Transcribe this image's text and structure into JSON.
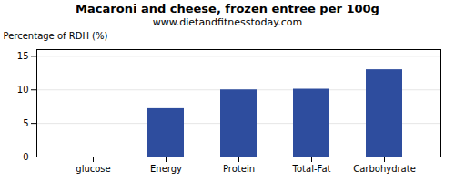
{
  "chart_data": {
    "type": "bar",
    "title": "Macaroni and cheese, frozen entree per 100g",
    "subtitle": "www.dietandfitnesstoday.com",
    "categories": [
      "glucose",
      "Energy",
      "Protein",
      "Total-Fat",
      "Carbohydrate"
    ],
    "values": [
      0,
      7.2,
      10.0,
      10.1,
      13.0
    ],
    "color": "#2e4d9e",
    "ylabel": "Percentage of RDH (%)",
    "ylim": [
      0,
      16
    ],
    "yticks": [
      0,
      5,
      10,
      15
    ],
    "grid": true
  }
}
